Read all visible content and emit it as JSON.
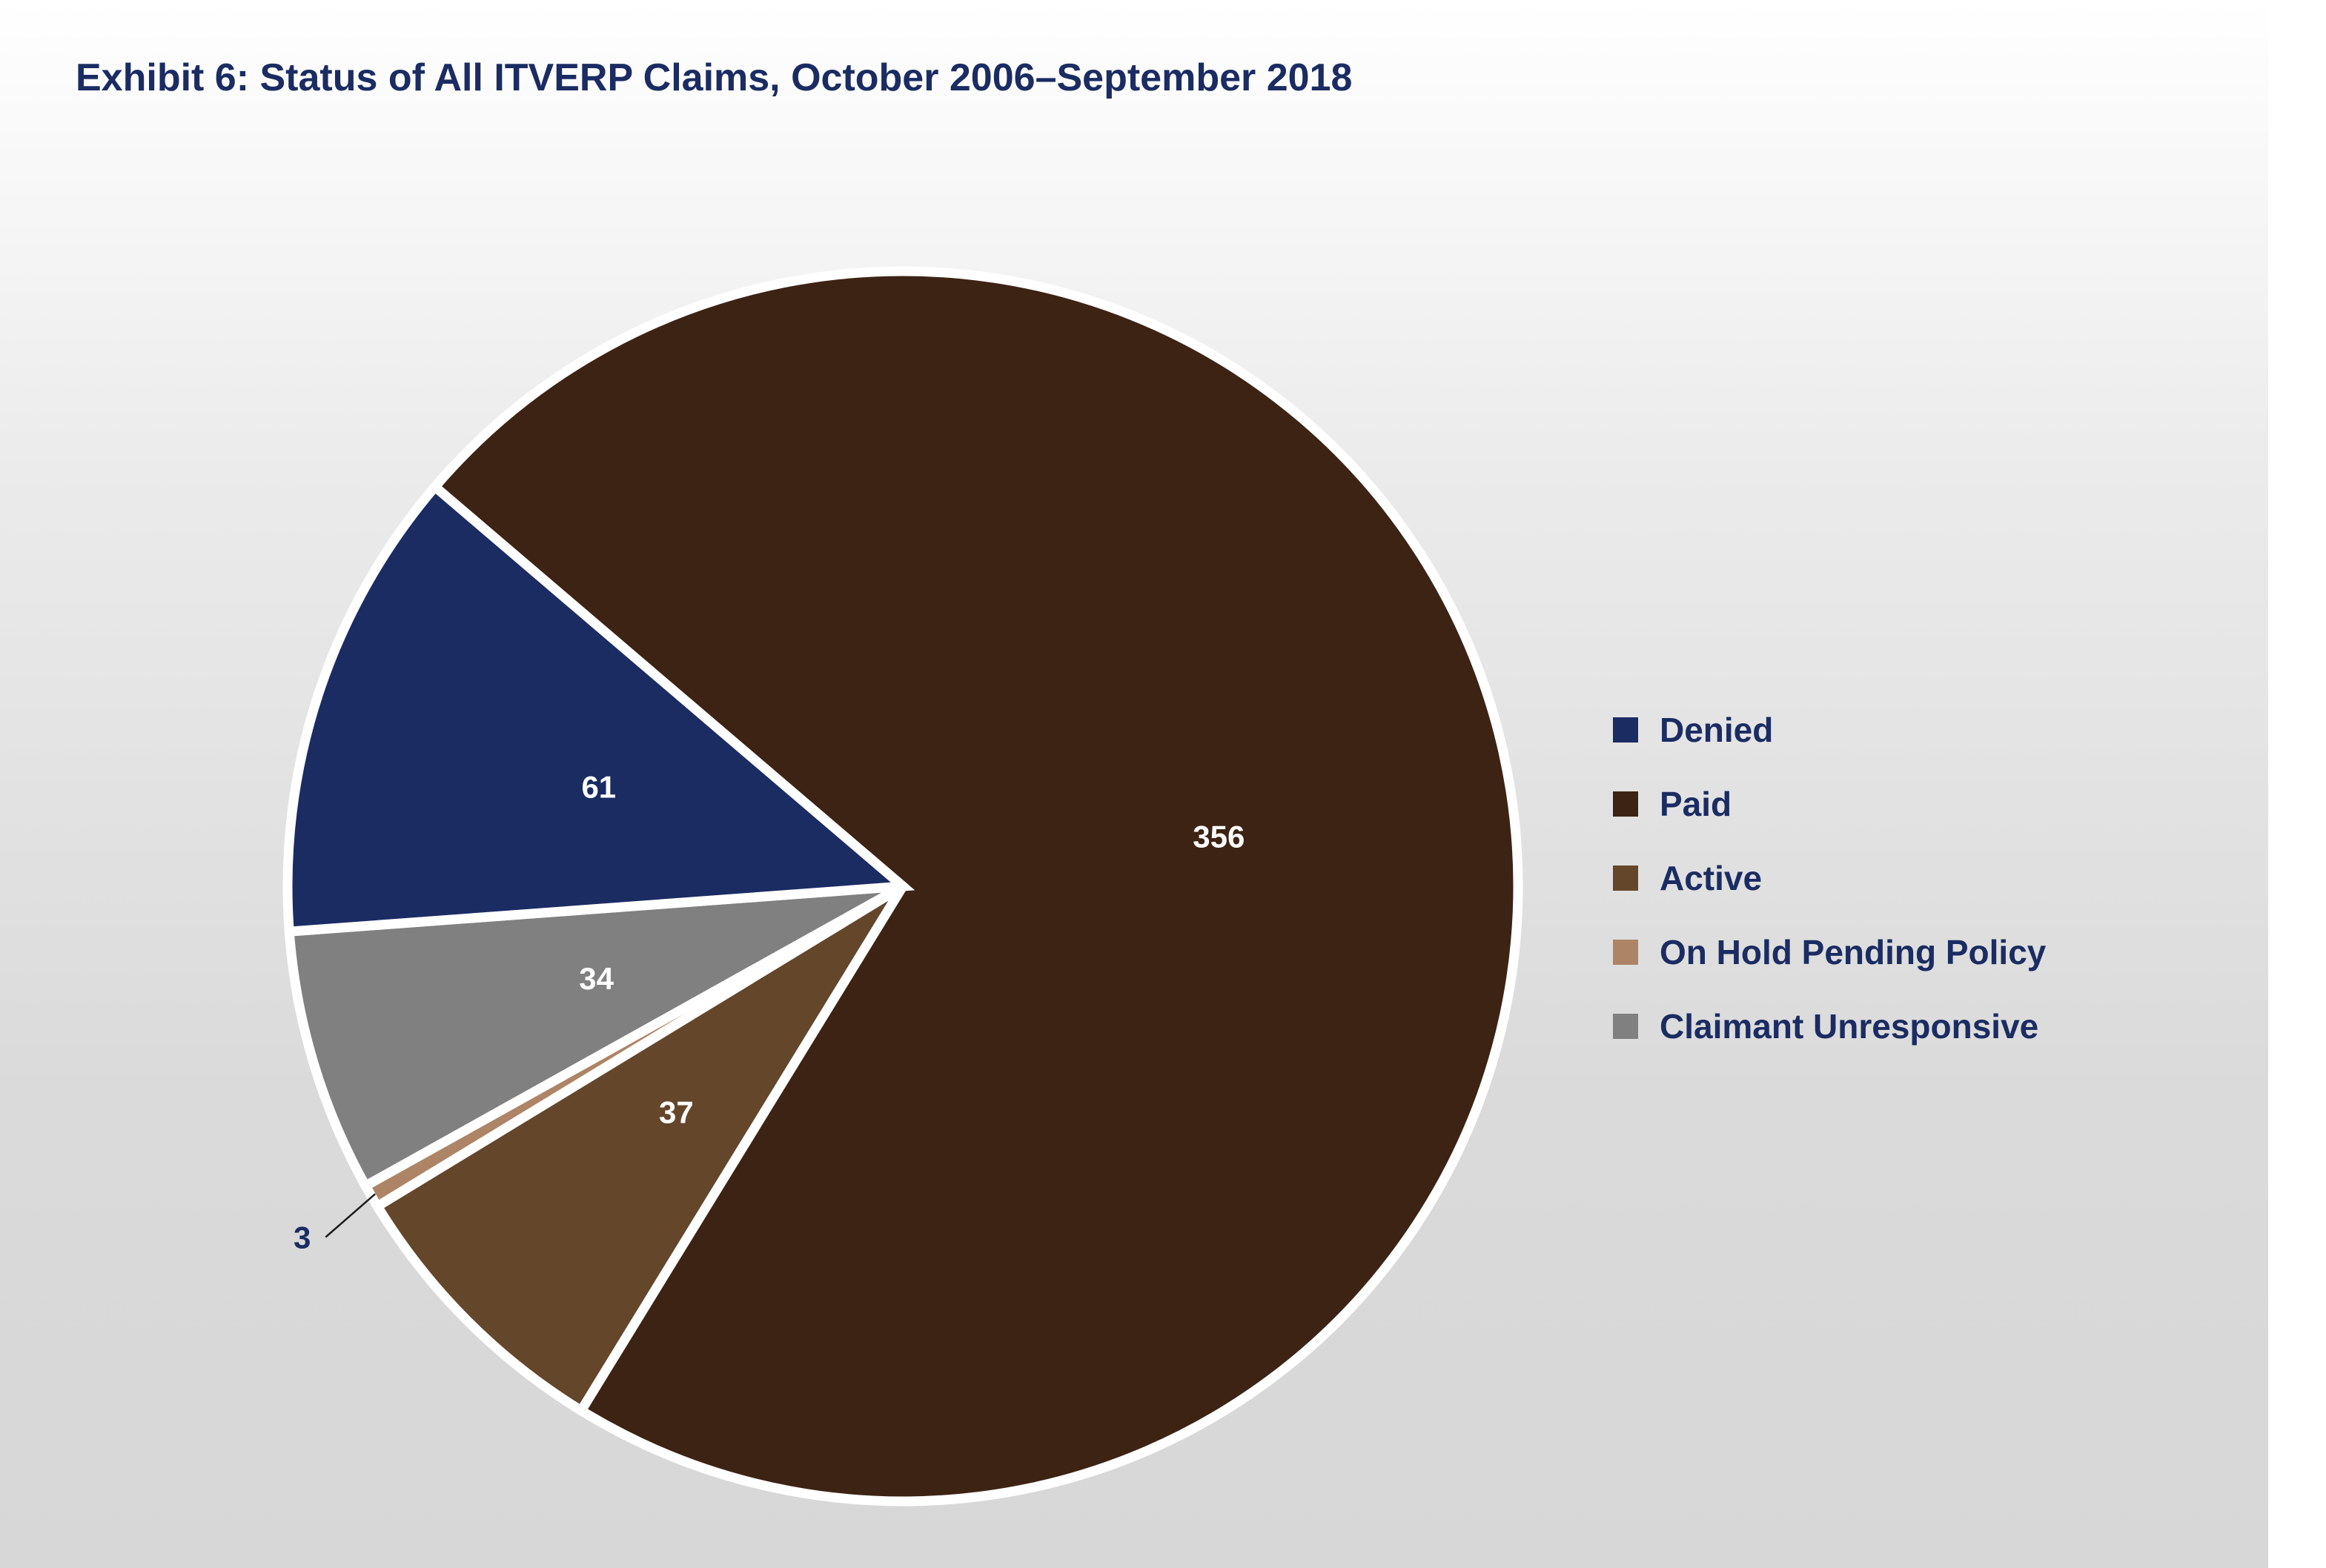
{
  "chart_data": {
    "type": "pie",
    "title": "Exhibit 6: Status of All ITVERP Claims, October 2006–September 2018",
    "title_color": "#1b2c63",
    "text_color": "#1b2c63",
    "label_color": "#ffffff",
    "legend_position": "right",
    "slices": [
      {
        "label": "Paid",
        "value": 356,
        "display": "356",
        "color": "#3d2314"
      },
      {
        "label": "Active",
        "value": 37,
        "display": "37",
        "color": "#64462b"
      },
      {
        "label": "On Hold Pending Policy",
        "value": 3,
        "display": "3",
        "color": "#ad8466",
        "label_outside": true
      },
      {
        "label": "Claimant Unresponsive",
        "value": 34,
        "display": "34",
        "color": "#808080"
      },
      {
        "label": "Denied",
        "value": 61,
        "display": "61",
        "color": "#1b2c63"
      }
    ],
    "legend": [
      "Denied",
      "Paid",
      "Active",
      "On Hold Pending Policy",
      "Claimant Unresponsive"
    ]
  }
}
